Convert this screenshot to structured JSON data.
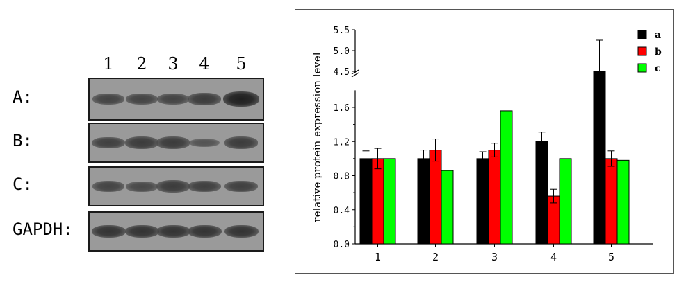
{
  "blot": {
    "lanes": [
      "1",
      "2",
      "3",
      "4",
      "5"
    ],
    "rows": [
      {
        "label": "A:",
        "intensity": [
          0.55,
          0.55,
          0.55,
          0.65,
          1.0
        ]
      },
      {
        "label": "B:",
        "intensity": [
          0.6,
          0.65,
          0.65,
          0.35,
          0.65
        ]
      },
      {
        "label": "C:",
        "intensity": [
          0.55,
          0.5,
          0.65,
          0.6,
          0.6
        ]
      },
      {
        "label": "GAPDH:",
        "intensity": [
          0.75,
          0.75,
          0.75,
          0.75,
          0.75
        ]
      }
    ]
  },
  "chart_data": {
    "type": "bar",
    "categories": [
      "1",
      "2",
      "3",
      "4",
      "5"
    ],
    "series": [
      {
        "name": "a",
        "color": "#000000",
        "values": [
          1.0,
          1.0,
          1.0,
          1.2,
          4.5
        ],
        "errors": [
          0.09,
          0.1,
          0.08,
          0.11,
          0.75
        ]
      },
      {
        "name": "b",
        "color": "#ff0000",
        "values": [
          1.0,
          1.1,
          1.1,
          0.56,
          1.0
        ],
        "errors": [
          0.12,
          0.13,
          0.08,
          0.08,
          0.09
        ]
      },
      {
        "name": "c",
        "color": "#00ff00",
        "values": [
          1.0,
          0.86,
          1.56,
          1.0,
          0.98
        ],
        "errors": [
          0,
          0,
          0,
          0,
          0
        ]
      }
    ],
    "ylabel": "relative protein expression level",
    "xlabel": "",
    "ylim": [
      0,
      5.5
    ],
    "axis_break": [
      1.8,
      4.5
    ],
    "yticks_lower": [
      "0.0",
      "0.4",
      "0.8",
      "1.2",
      "1.6"
    ],
    "yticks_upper": [
      "4.5",
      "5.0",
      "5.5"
    ],
    "legend_position": "top-right",
    "grid": false
  }
}
